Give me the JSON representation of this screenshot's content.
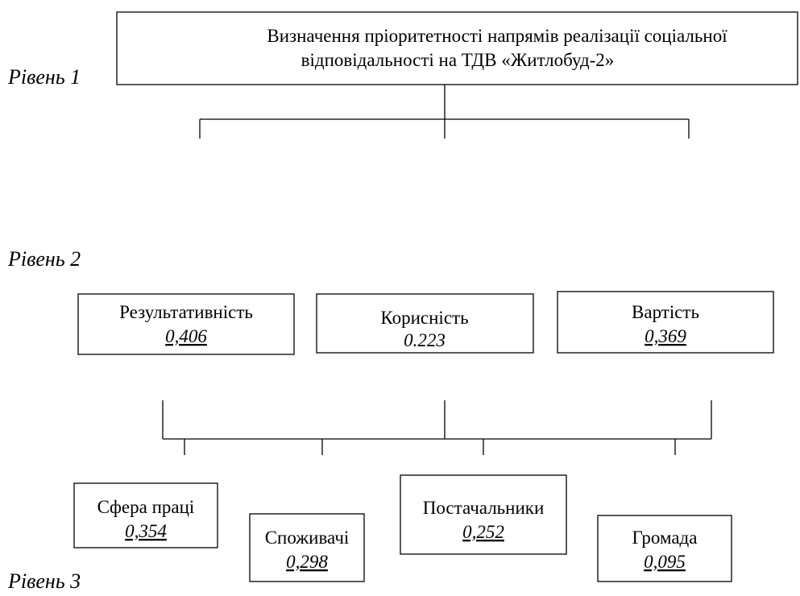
{
  "levels": [
    "Рівень 1",
    "Рівень 2",
    "Рівень 3"
  ],
  "goal": {
    "lines": [
      "Визначення пріоритетності напрямів реалізації соціальної",
      "відповідальності на ТДВ «Житлобуд-2»"
    ]
  },
  "criteria": [
    {
      "label": "Результативність",
      "weight": "0,406"
    },
    {
      "label": "Корисність",
      "weight": "0.223"
    },
    {
      "label": "Вартість",
      "weight": "0,369"
    }
  ],
  "alternatives": [
    {
      "label": "Сфера праці",
      "weight": "0,354"
    },
    {
      "label": "Споживачі",
      "weight": "0,298"
    },
    {
      "label": "Постачальники",
      "weight": "0,252"
    },
    {
      "label": "Громада",
      "weight": "0,095"
    }
  ]
}
